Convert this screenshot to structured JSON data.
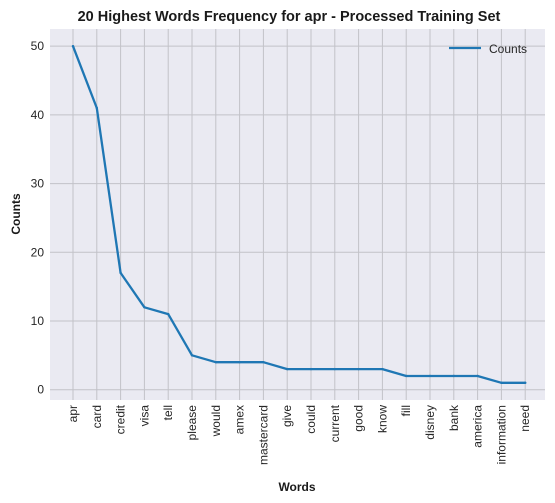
{
  "chart_data": {
    "type": "line",
    "title": "20 Highest Words Frequency for apr - Processed Training Set",
    "xlabel": "Words",
    "ylabel": "Counts",
    "categories": [
      "apr",
      "card",
      "credit",
      "visa",
      "tell",
      "please",
      "would",
      "amex",
      "mastercard",
      "give",
      "could",
      "current",
      "good",
      "know",
      "fill",
      "disney",
      "bank",
      "america",
      "information",
      "need"
    ],
    "series": [
      {
        "name": "Counts",
        "values": [
          50,
          41,
          17,
          12,
          11,
          5,
          4,
          4,
          4,
          3,
          3,
          3,
          3,
          3,
          2,
          2,
          2,
          2,
          1,
          1
        ],
        "color": "#1f77b4"
      }
    ],
    "ylim": [
      -1.5,
      52.5
    ],
    "yticks": [
      0,
      10,
      20,
      30,
      40,
      50
    ],
    "grid": true,
    "legend": "top-right",
    "background": "#eaeaf2",
    "grid_color": "#c2c2c8"
  }
}
